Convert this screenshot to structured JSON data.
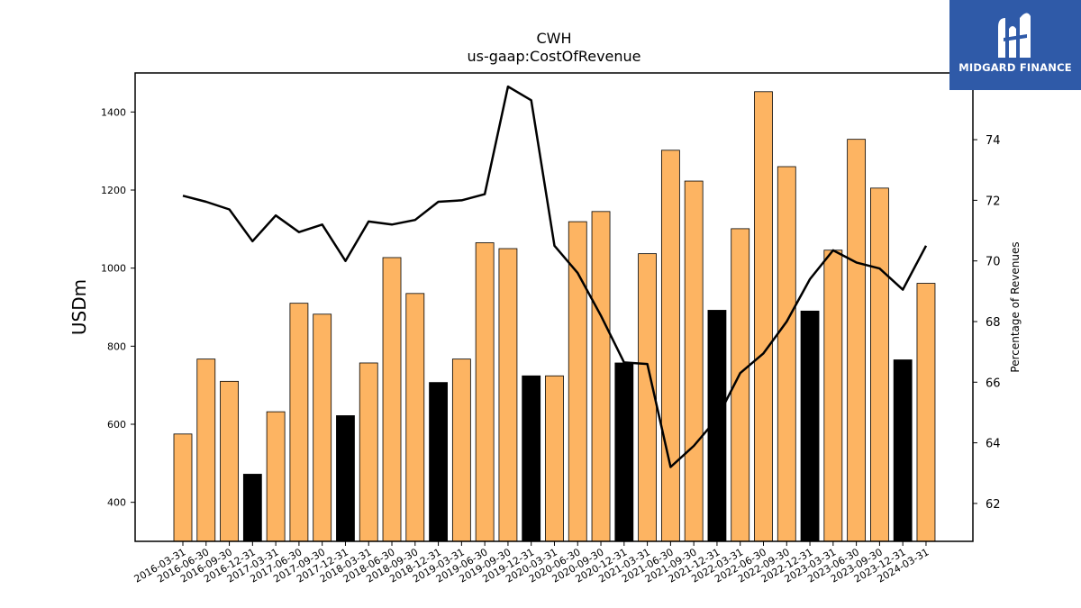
{
  "chart_data": {
    "type": "bar",
    "title": "CWH",
    "subtitle": "us-gaap:CostOfRevenue",
    "ylabel": "USDm",
    "y2label": "Percentage of Revenues",
    "ylim": [
      300,
      1500
    ],
    "y2lim": [
      60.75,
      76.2
    ],
    "yticks": [
      400,
      600,
      800,
      1000,
      1200,
      1400
    ],
    "y2ticks": [
      62,
      64,
      66,
      68,
      70,
      72,
      74
    ],
    "categories": [
      "2016-03-31",
      "2016-06-30",
      "2016-09-30",
      "2016-12-31",
      "2017-03-31",
      "2017-06-30",
      "2017-09-30",
      "2017-12-31",
      "2018-03-31",
      "2018-06-30",
      "2018-09-30",
      "2018-12-31",
      "2019-03-31",
      "2019-06-30",
      "2019-09-30",
      "2019-12-31",
      "2020-03-31",
      "2020-06-30",
      "2020-09-30",
      "2020-12-31",
      "2021-03-31",
      "2021-06-30",
      "2021-09-30",
      "2021-12-31",
      "2022-03-31",
      "2022-06-30",
      "2022-09-30",
      "2022-12-31",
      "2023-03-31",
      "2023-06-30",
      "2023-09-30",
      "2023-12-31",
      "2024-03-31"
    ],
    "series": [
      {
        "kind": "bar",
        "values": [
          575,
          767,
          710,
          472,
          632,
          910,
          882,
          622,
          757,
          1027,
          935,
          707,
          767,
          1065,
          1050,
          724,
          724,
          1119,
          1145,
          757,
          1037,
          1302,
          1223,
          892,
          1101,
          1452,
          1260,
          890,
          1046,
          1330,
          1205,
          765,
          961
        ],
        "colors": [
          "#fdb462",
          "#fdb462",
          "#fdb462",
          "#000000",
          "#fdb462",
          "#fdb462",
          "#fdb462",
          "#000000",
          "#fdb462",
          "#fdb462",
          "#fdb462",
          "#000000",
          "#fdb462",
          "#fdb462",
          "#fdb462",
          "#000000",
          "#fdb462",
          "#fdb462",
          "#fdb462",
          "#000000",
          "#fdb462",
          "#fdb462",
          "#fdb462",
          "#000000",
          "#fdb462",
          "#fdb462",
          "#fdb462",
          "#000000",
          "#fdb462",
          "#fdb462",
          "#fdb462",
          "#000000",
          "#fdb462"
        ]
      },
      {
        "kind": "line",
        "axis": "secondary",
        "color": "#000000",
        "values": [
          72.15,
          71.95,
          71.7,
          70.65,
          71.5,
          70.95,
          71.2,
          70.0,
          71.3,
          71.2,
          71.35,
          71.95,
          72.0,
          72.2,
          75.75,
          75.3,
          70.5,
          69.6,
          68.2,
          66.65,
          66.6,
          63.2,
          63.9,
          64.8,
          66.3,
          66.95,
          68.0,
          69.4,
          70.35,
          69.95,
          69.75,
          69.05,
          70.5
        ]
      }
    ],
    "grid": false,
    "legend": "none"
  },
  "logo": {
    "text": "MIDGARD FINANCE",
    "background": "#2f5aa8"
  },
  "colors": {
    "bar_default": "#fdb462",
    "bar_highlight": "#000000",
    "line": "#000000"
  }
}
